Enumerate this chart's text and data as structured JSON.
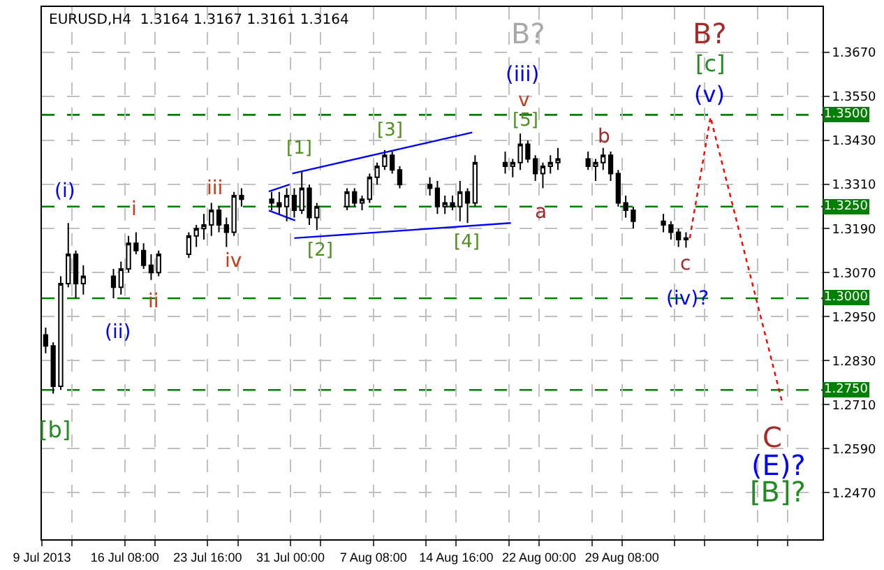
{
  "chart_data": {
    "type": "candlestick",
    "title": "EURUSD,H4  1.3164 1.3167 1.3161 1.3164",
    "color": "#000000",
    "x": [
      "2013-07-09T08:00",
      "2013-07-10T00:00",
      "2013-07-10T16:00",
      "2013-07-11T08:00",
      "2013-07-12T00:00",
      "2013-07-12T16:00",
      "2013-07-15T08:00",
      "2013-07-16T00:00",
      "2013-07-16T16:00",
      "2013-07-17T08:00",
      "2013-07-18T00:00",
      "2013-07-18T16:00",
      "2013-07-19T08:00",
      "2013-07-22T00:00",
      "2013-07-22T16:00",
      "2013-07-23T08:00",
      "2013-07-24T00:00",
      "2013-07-24T16:00",
      "2013-07-25T08:00",
      "2013-07-26T00:00",
      "2013-07-26T16:00",
      "2013-07-29T08:00",
      "2013-07-30T00:00",
      "2013-07-30T16:00",
      "2013-07-31T08:00",
      "2013-08-01T00:00",
      "2013-08-01T16:00",
      "2013-08-02T08:00",
      "2013-08-05T00:00",
      "2013-08-05T16:00",
      "2013-08-06T08:00",
      "2013-08-07T00:00",
      "2013-08-07T16:00",
      "2013-08-08T08:00",
      "2013-08-09T00:00",
      "2013-08-09T16:00",
      "2013-08-12T08:00",
      "2013-08-13T00:00",
      "2013-08-13T16:00",
      "2013-08-14T08:00",
      "2013-08-15T00:00",
      "2013-08-15T16:00",
      "2013-08-16T08:00",
      "2013-08-19T00:00",
      "2013-08-19T16:00",
      "2013-08-20T08:00",
      "2013-08-21T00:00",
      "2013-08-21T16:00",
      "2013-08-22T08:00",
      "2013-08-23T00:00",
      "2013-08-23T16:00",
      "2013-08-26T08:00",
      "2013-08-27T00:00",
      "2013-08-27T16:00",
      "2013-08-28T08:00",
      "2013-08-29T00:00",
      "2013-08-29T16:00",
      "2013-08-30T08:00",
      "2013-09-02T00:00",
      "2013-09-02T16:00",
      "2013-09-03T08:00",
      "2013-09-04T00:00"
    ],
    "ohlc": [
      [
        1.29,
        1.292,
        1.285,
        1.287
      ],
      [
        1.287,
        1.288,
        1.274,
        1.276
      ],
      [
        1.276,
        1.306,
        1.275,
        1.304
      ],
      [
        1.304,
        1.3205,
        1.303,
        1.312
      ],
      [
        1.312,
        1.313,
        1.3,
        1.304
      ],
      [
        1.304,
        1.309,
        1.301,
        1.306
      ],
      [
        1.306,
        1.308,
        1.3,
        1.303
      ],
      [
        1.303,
        1.31,
        1.301,
        1.308
      ],
      [
        1.308,
        1.317,
        1.307,
        1.315
      ],
      [
        1.315,
        1.318,
        1.312,
        1.313
      ],
      [
        1.313,
        1.315,
        1.308,
        1.309
      ],
      [
        1.309,
        1.312,
        1.305,
        1.307
      ],
      [
        1.307,
        1.313,
        1.306,
        1.312
      ],
      [
        1.312,
        1.318,
        1.311,
        1.317
      ],
      [
        1.317,
        1.32,
        1.314,
        1.319
      ],
      [
        1.319,
        1.323,
        1.316,
        1.32
      ],
      [
        1.32,
        1.326,
        1.317,
        1.324
      ],
      [
        1.324,
        1.325,
        1.318,
        1.32
      ],
      [
        1.32,
        1.322,
        1.314,
        1.318
      ],
      [
        1.318,
        1.329,
        1.317,
        1.328
      ],
      [
        1.328,
        1.33,
        1.325,
        1.327
      ],
      [
        1.327,
        1.329,
        1.324,
        1.326
      ],
      [
        1.326,
        1.329,
        1.323,
        1.325
      ],
      [
        1.325,
        1.33,
        1.321,
        1.328
      ],
      [
        1.328,
        1.33,
        1.322,
        1.324
      ],
      [
        1.324,
        1.3344,
        1.323,
        1.33
      ],
      [
        1.33,
        1.331,
        1.32,
        1.322
      ],
      [
        1.322,
        1.326,
        1.3186,
        1.325
      ],
      [
        1.325,
        1.33,
        1.324,
        1.329
      ],
      [
        1.329,
        1.33,
        1.325,
        1.326
      ],
      [
        1.326,
        1.328,
        1.324,
        1.327
      ],
      [
        1.327,
        1.334,
        1.326,
        1.333
      ],
      [
        1.333,
        1.337,
        1.331,
        1.336
      ],
      [
        1.336,
        1.3404,
        1.335,
        1.339
      ],
      [
        1.339,
        1.34,
        1.334,
        1.335
      ],
      [
        1.335,
        1.336,
        1.33,
        1.331
      ],
      [
        1.331,
        1.333,
        1.328,
        1.33
      ],
      [
        1.33,
        1.332,
        1.323,
        1.325
      ],
      [
        1.325,
        1.328,
        1.323,
        1.326
      ],
      [
        1.326,
        1.328,
        1.324,
        1.325
      ],
      [
        1.325,
        1.332,
        1.321,
        1.329
      ],
      [
        1.329,
        1.33,
        1.3205,
        1.326
      ],
      [
        1.326,
        1.339,
        1.325,
        1.337
      ],
      [
        1.337,
        1.34,
        1.334,
        1.336
      ],
      [
        1.336,
        1.338,
        1.333,
        1.337
      ],
      [
        1.337,
        1.3449,
        1.335,
        1.342
      ],
      [
        1.342,
        1.343,
        1.337,
        1.338
      ],
      [
        1.338,
        1.339,
        1.332,
        1.334
      ],
      [
        1.334,
        1.337,
        1.33,
        1.336
      ],
      [
        1.336,
        1.339,
        1.334,
        1.337
      ],
      [
        1.337,
        1.341,
        1.335,
        1.338
      ],
      [
        1.338,
        1.34,
        1.335,
        1.336
      ],
      [
        1.336,
        1.338,
        1.332,
        1.337
      ],
      [
        1.337,
        1.341,
        1.335,
        1.339
      ],
      [
        1.339,
        1.34,
        1.332,
        1.334
      ],
      [
        1.334,
        1.335,
        1.325,
        1.326
      ],
      [
        1.326,
        1.328,
        1.322,
        1.324
      ],
      [
        1.324,
        1.325,
        1.319,
        1.321
      ],
      [
        1.321,
        1.323,
        1.318,
        1.32
      ],
      [
        1.32,
        1.321,
        1.316,
        1.318
      ],
      [
        1.318,
        1.319,
        1.314,
        1.316
      ],
      [
        1.316,
        1.318,
        1.3138,
        1.3164
      ]
    ],
    "series": [
      {
        "type": "line",
        "color": "#0000ff",
        "x": [
          "2013-07-31T04:00",
          "2013-08-16T02:00"
        ],
        "values": [
          1.334,
          1.3452
        ]
      },
      {
        "type": "line",
        "color": "#0000ff",
        "x": [
          "2013-07-31T08:00",
          "2013-08-19T12:00"
        ],
        "values": [
          1.3164,
          1.3205
        ]
      },
      {
        "type": "line",
        "color": "#0000ff",
        "x": [
          "2013-07-29T02:00",
          "2013-07-30T22:00"
        ],
        "values": [
          1.3291,
          1.331
        ]
      },
      {
        "type": "line",
        "color": "#0000ff",
        "x": [
          "2013-07-29T02:00",
          "2013-07-31T10:00"
        ],
        "values": [
          1.3239,
          1.3212
        ]
      },
      {
        "type": "line",
        "color": "#ff0000",
        "line_style": "dotted",
        "x": [
          "2013-09-04T08:00",
          "2013-09-06T04:00",
          "2013-09-12T12:00"
        ],
        "values": [
          1.3164,
          1.3494,
          1.2718
        ]
      }
    ],
    "ref_lines": [
      {
        "axis": "y",
        "value": 1.35,
        "label": "1.3500",
        "color": "#008000",
        "line_style": "dashed"
      },
      {
        "axis": "y",
        "value": 1.325,
        "label": "1.3250",
        "color": "#008000",
        "line_style": "dashed"
      },
      {
        "axis": "y",
        "value": 1.3,
        "label": "1.3000",
        "color": "#008000",
        "line_style": "dashed"
      },
      {
        "axis": "y",
        "value": 1.275,
        "label": "1.2750",
        "color": "#008000",
        "line_style": "dashed"
      }
    ],
    "annotations": [
      "(i)",
      "i",
      "ii",
      "(ii)",
      "iii",
      "iv",
      "[1]",
      "[2]",
      "[3]",
      "[4]",
      "[5]",
      "v",
      "(iii)",
      "B?",
      "a",
      "b",
      "c",
      "(iv)?",
      "B?",
      "[c]",
      "(v)",
      "[b]",
      "C",
      "(E)?",
      "[B]?"
    ],
    "xlim": [
      "2013-07-09T00:00",
      "2013-09-16T02:00"
    ],
    "xticks": [
      {
        "value": "2013-07-09T00:00",
        "label": "9 Jul 2013"
      },
      {
        "value": "2013-07-11T16:00",
        "label": null
      },
      {
        "value": "2013-07-16T08:00",
        "label": "16 Jul 08:00"
      },
      {
        "value": "2013-07-19T00:00",
        "label": null
      },
      {
        "value": "2013-07-23T16:00",
        "label": "23 Jul 16:00"
      },
      {
        "value": "2013-07-26T08:00",
        "label": null
      },
      {
        "value": "2013-07-31T00:00",
        "label": "31 Jul 00:00"
      },
      {
        "value": "2013-08-02T16:00",
        "label": null
      },
      {
        "value": "2013-08-07T08:00",
        "label": "7 Aug 08:00"
      },
      {
        "value": "2013-08-12T00:00",
        "label": null
      },
      {
        "value": "2013-08-14T16:00",
        "label": "14 Aug 16:00"
      },
      {
        "value": "2013-08-19T08:00",
        "label": null
      },
      {
        "value": "2013-08-22T00:00",
        "label": "22 Aug 00:00"
      },
      {
        "value": "2013-08-26T16:00",
        "label": null
      },
      {
        "value": "2013-08-29T08:00",
        "label": "29 Aug 08:00"
      },
      {
        "value": "2013-09-03T00:00",
        "label": null
      },
      {
        "value": "2013-09-05T16:00",
        "label": null
      },
      {
        "value": "2013-09-10T08:00",
        "label": null
      },
      {
        "value": "2013-09-13T00:00",
        "label": null
      }
    ],
    "ylim": [
      1.2343,
      1.3794
    ],
    "yticks": [
      {
        "value": 1.247,
        "label": "1.2470"
      },
      {
        "value": 1.259,
        "label": "1.2590"
      },
      {
        "value": 1.271,
        "label": "1.2710"
      },
      {
        "value": 1.283,
        "label": "1.2830"
      },
      {
        "value": 1.295,
        "label": "1.2950"
      },
      {
        "value": 1.307,
        "label": "1.3070"
      },
      {
        "value": 1.319,
        "label": "1.3190"
      },
      {
        "value": 1.331,
        "label": "1.3310"
      },
      {
        "value": 1.343,
        "label": "1.3430"
      },
      {
        "value": 1.355,
        "label": "1.3550"
      },
      {
        "value": 1.367,
        "label": "1.3670"
      }
    ],
    "grid": true
  }
}
